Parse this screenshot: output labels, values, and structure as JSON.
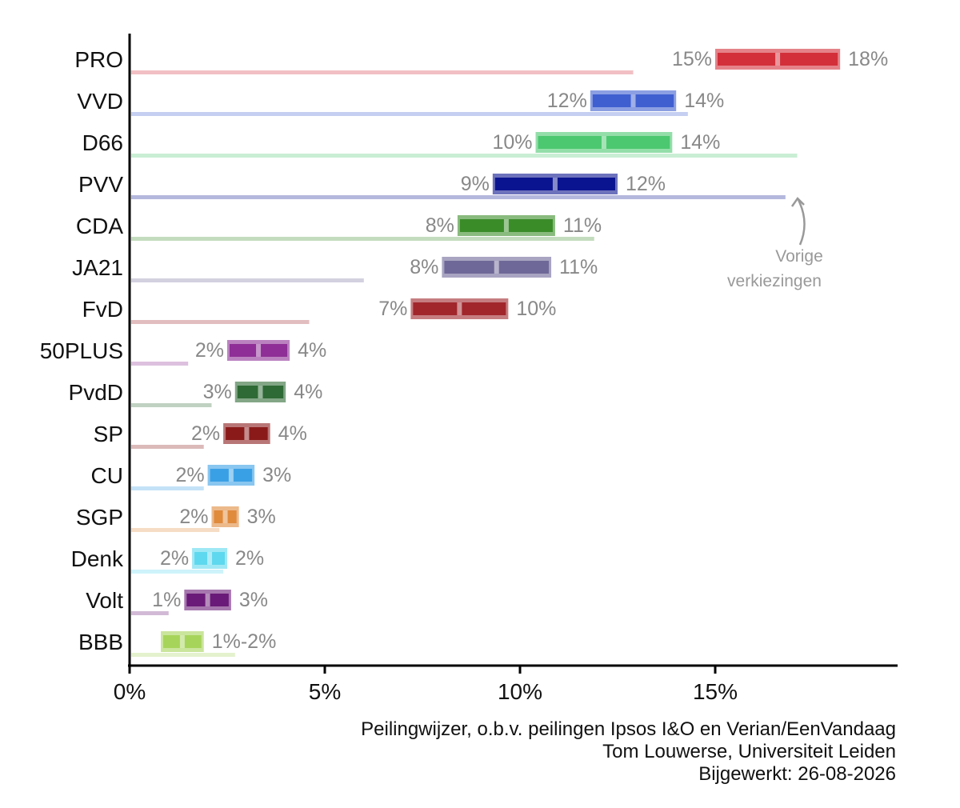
{
  "chart_data": {
    "type": "bar",
    "xlim": [
      0,
      19.8
    ],
    "x_ticks": [
      {
        "value": 0,
        "label": "0%"
      },
      {
        "value": 5,
        "label": "5%"
      },
      {
        "value": 10,
        "label": "10%"
      },
      {
        "value": 15,
        "label": "15%"
      }
    ],
    "parties": [
      {
        "name": "PRO",
        "color": "#d32f3a",
        "low": 15.0,
        "high": 18.2,
        "low_label": "15%",
        "high_label": "18%",
        "previous": 12.9
      },
      {
        "name": "VVD",
        "color": "#3f5fd0",
        "low": 11.8,
        "high": 14.0,
        "low_label": "12%",
        "high_label": "14%",
        "previous": 14.3
      },
      {
        "name": "D66",
        "color": "#4cc870",
        "low": 10.4,
        "high": 13.9,
        "low_label": "10%",
        "high_label": "14%",
        "previous": 17.1
      },
      {
        "name": "PVV",
        "color": "#0b1490",
        "low": 9.3,
        "high": 12.5,
        "low_label": "9%",
        "high_label": "12%",
        "previous": 16.8
      },
      {
        "name": "CDA",
        "color": "#3a8c28",
        "low": 8.4,
        "high": 10.9,
        "low_label": "8%",
        "high_label": "11%",
        "previous": 11.9
      },
      {
        "name": "JA21",
        "color": "#6e6898",
        "low": 8.0,
        "high": 10.8,
        "low_label": "8%",
        "high_label": "11%",
        "previous": 6.0
      },
      {
        "name": "FvD",
        "color": "#a0262c",
        "low": 7.2,
        "high": 9.7,
        "low_label": "7%",
        "high_label": "10%",
        "previous": 4.6
      },
      {
        "name": "50PLUS",
        "color": "#8e2e96",
        "low": 2.5,
        "high": 4.1,
        "low_label": "2%",
        "high_label": "4%",
        "previous": 1.5
      },
      {
        "name": "PvdD",
        "color": "#2e6a35",
        "low": 2.7,
        "high": 4.0,
        "low_label": "3%",
        "high_label": "4%",
        "previous": 2.1
      },
      {
        "name": "SP",
        "color": "#8a1a1a",
        "low": 2.4,
        "high": 3.6,
        "low_label": "2%",
        "high_label": "4%",
        "previous": 1.9
      },
      {
        "name": "CU",
        "color": "#3aa0e6",
        "low": 2.0,
        "high": 3.2,
        "low_label": "2%",
        "high_label": "3%",
        "previous": 1.9
      },
      {
        "name": "SGP",
        "color": "#e08a3c",
        "low": 2.1,
        "high": 2.8,
        "low_label": "2%",
        "high_label": "3%",
        "previous": 2.3
      },
      {
        "name": "Denk",
        "color": "#5ed8ee",
        "low": 1.6,
        "high": 2.5,
        "low_label": "2%",
        "high_label": "2%",
        "previous": 2.4
      },
      {
        "name": "Volt",
        "color": "#6a1a78",
        "low": 1.4,
        "high": 2.6,
        "low_label": "1%",
        "high_label": "3%",
        "previous": 1.0
      },
      {
        "name": "BBB",
        "color": "#a6d45a",
        "low": 0.8,
        "high": 1.9,
        "low_label": "",
        "high_label": "1%-2%",
        "previous": 2.7
      }
    ],
    "annotation": {
      "lines": [
        "Vorige",
        "verkiezingen"
      ]
    }
  },
  "credits": {
    "line1": "Peilingwijzer, o.b.v. peilingen Ipsos I&O en Verian/EenVandaag",
    "line2": "Tom Louwerse, Universiteit Leiden",
    "line3": "Bijgewerkt: 26-08-2026"
  }
}
